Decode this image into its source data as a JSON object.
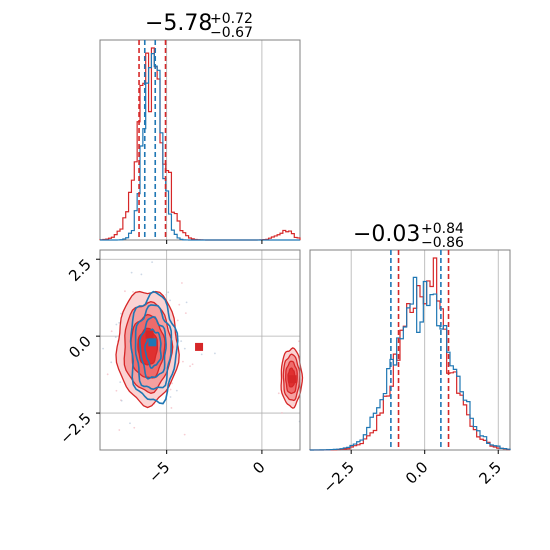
{
  "chart_data": {
    "type": "corner",
    "colors": {
      "red": "#d62728",
      "blue": "#1f77b4",
      "red_fill": "#f08a8a",
      "grid": "#b0b0b0",
      "frame": "#808080"
    },
    "panels": [
      {
        "id": "hist-param1",
        "type": "histogram",
        "title": {
          "main": "−5.78",
          "sup": "+0.72",
          "sub": "−0.67"
        },
        "xlim": [
          -8.5,
          2.0
        ],
        "series": [
          {
            "name": "",
            "color": "red",
            "median": -5.78,
            "quantiles": [
              -6.45,
              -5.06
            ]
          },
          {
            "name": "",
            "color": "blue",
            "median": -5.75,
            "quantiles": [
              -6.15,
              -5.6
            ]
          }
        ],
        "secondary_mode_x": 1.2
      },
      {
        "id": "hist-param2",
        "type": "histogram",
        "title": {
          "main": "−0.03",
          "sup": "+0.84",
          "sub": "−0.86"
        },
        "xlim": [
          -3.9,
          2.9
        ],
        "series": [
          {
            "name": "",
            "color": "red",
            "median": -0.03,
            "quantiles": [
              -0.89,
              0.81
            ]
          },
          {
            "name": "",
            "color": "blue",
            "median": 0.0,
            "quantiles": [
              -1.15,
              0.55
            ]
          }
        ],
        "xticks": [
          "−2.5",
          "0.0",
          "2.5"
        ],
        "xtick_values": [
          -2.5,
          0.0,
          2.5
        ]
      },
      {
        "id": "joint",
        "type": "contour",
        "xlim": [
          -8.5,
          2.0
        ],
        "ylim": [
          -3.7,
          2.8
        ],
        "xticks": [
          "−5",
          "0"
        ],
        "xtick_values": [
          -5,
          0
        ],
        "yticks": [
          "2.5",
          "0.0",
          "−2.5"
        ],
        "ytick_values": [
          2.5,
          0.0,
          -2.5
        ],
        "markers": [
          {
            "color": "red",
            "x": -5.9,
            "y": 0.05
          },
          {
            "color": "red",
            "x": -3.3,
            "y": -0.35
          },
          {
            "color": "red",
            "x": 1.6,
            "y": -1.4
          },
          {
            "color": "blue",
            "x": -5.75,
            "y": -0.2
          }
        ],
        "red_modes": [
          {
            "cx": -6.0,
            "cy": -0.35,
            "rx": 1.6,
            "ry": 1.85
          },
          {
            "cx": 1.55,
            "cy": -1.35,
            "rx": 0.55,
            "ry": 0.95
          }
        ],
        "blue_mode": {
          "cx": -5.7,
          "cy": -0.4,
          "rx": 1.2,
          "ry": 1.75
        }
      }
    ]
  }
}
